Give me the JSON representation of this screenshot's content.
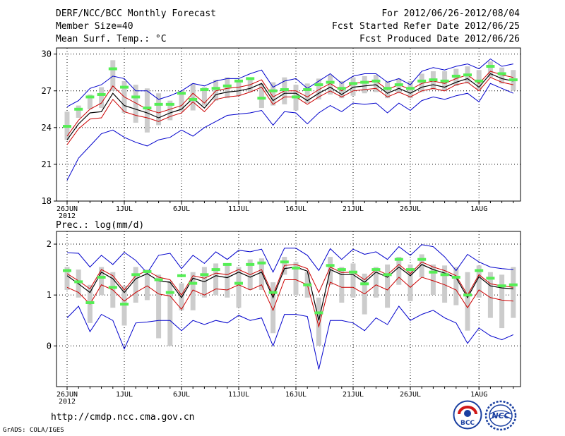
{
  "header": {
    "title": "DERF/NCC/BCC Monthly Forecast",
    "member_size": "Member Size=40",
    "variable": "Mean Surf. Temp.: °C",
    "forecast_period": "For 2012/06/26-2012/08/04",
    "start_refer": "Fcst Started Refer Date 2012/06/25",
    "produced": "Fcst Produced Date 2012/06/26"
  },
  "footer": {
    "url": "http://cmdp.ncc.cma.gov.cn",
    "grads": "GrADS: COLA/IGES",
    "logo_bcc": "BCC",
    "logo_ncc": "NCC"
  },
  "colors": {
    "max_min": "#0000cc",
    "spread": "#cc0000",
    "mean": "#000000",
    "observed_bar": "#55ee55",
    "box": "#cccccc",
    "grid": "#000000"
  },
  "chart_data": [
    {
      "type": "line",
      "title": "Mean Surf. Temp.: °C",
      "x_tick_labels": [
        "26JUN",
        "1JUL",
        "6JUL",
        "11JUL",
        "16JUL",
        "21JUL",
        "26JUL",
        "1AUG"
      ],
      "x_tick_days": [
        0,
        5,
        10,
        15,
        20,
        25,
        30,
        36
      ],
      "x_sub_label": "2012",
      "ylim": [
        18,
        30.5
      ],
      "y_ticks": [
        18,
        21,
        24,
        27,
        30
      ],
      "series": [
        {
          "name": "max",
          "color": "#0000cc",
          "values": [
            25.7,
            26.2,
            27.2,
            27.5,
            28.2,
            28.0,
            27.0,
            27.0,
            26.3,
            26.6,
            27.0,
            27.6,
            27.4,
            27.8,
            28.0,
            28.0,
            28.4,
            28.7,
            27.3,
            27.8,
            28.0,
            27.2,
            27.8,
            28.4,
            27.6,
            28.2,
            28.4,
            28.4,
            27.7,
            28.0,
            27.5,
            28.6,
            28.9,
            28.7,
            29.0,
            29.2,
            28.8,
            29.6,
            29.0,
            29.2
          ]
        },
        {
          "name": "upper",
          "color": "#cc0000",
          "values": [
            23.3,
            24.6,
            25.5,
            26.0,
            27.4,
            26.5,
            26.0,
            25.5,
            25.2,
            25.5,
            25.8,
            26.8,
            26.0,
            27.0,
            27.2,
            27.3,
            27.5,
            27.9,
            26.5,
            27.0,
            27.0,
            26.5,
            27.1,
            27.6,
            27.0,
            27.6,
            27.7,
            27.8,
            27.1,
            27.5,
            27.1,
            27.6,
            27.8,
            27.6,
            28.0,
            28.3,
            27.6,
            28.6,
            28.3,
            28.1
          ]
        },
        {
          "name": "mean",
          "color": "#000000",
          "values": [
            23.0,
            24.3,
            25.2,
            25.3,
            26.8,
            25.8,
            25.5,
            25.2,
            24.8,
            25.2,
            25.5,
            26.4,
            25.6,
            26.7,
            26.9,
            27.0,
            27.2,
            27.6,
            26.2,
            26.8,
            26.8,
            26.2,
            26.8,
            27.3,
            26.7,
            27.3,
            27.4,
            27.5,
            26.8,
            27.2,
            26.8,
            27.3,
            27.5,
            27.3,
            27.7,
            28.0,
            27.3,
            28.4,
            28.0,
            27.8
          ]
        },
        {
          "name": "lower",
          "color": "#cc0000",
          "values": [
            22.6,
            23.9,
            24.7,
            24.8,
            26.3,
            25.3,
            25.0,
            24.8,
            24.5,
            24.9,
            25.2,
            26.1,
            25.3,
            26.3,
            26.5,
            26.6,
            26.9,
            27.3,
            25.9,
            26.5,
            26.5,
            25.9,
            26.5,
            27.0,
            26.5,
            27.0,
            27.1,
            27.2,
            26.5,
            26.9,
            26.5,
            27.0,
            27.2,
            27.0,
            27.5,
            27.7,
            27.0,
            28.1,
            27.7,
            27.5
          ]
        },
        {
          "name": "min",
          "color": "#0000cc",
          "values": [
            19.7,
            21.5,
            22.5,
            23.5,
            23.8,
            23.2,
            22.8,
            22.5,
            23.0,
            23.2,
            23.8,
            23.3,
            24.0,
            24.5,
            25.0,
            25.1,
            25.2,
            25.4,
            24.2,
            25.3,
            25.2,
            24.3,
            25.2,
            25.8,
            25.3,
            26.0,
            25.9,
            26.0,
            25.2,
            26.0,
            25.4,
            26.2,
            26.5,
            26.3,
            26.6,
            26.8,
            26.1,
            27.6,
            27.2,
            26.8
          ]
        },
        {
          "name": "observed",
          "color": "#55ee55",
          "values": [
            24.1,
            25.5,
            26.5,
            26.7,
            28.8,
            27.3,
            26.5,
            25.6,
            25.9,
            25.9,
            26.8,
            26.3,
            27.1,
            27.2,
            27.4,
            27.8,
            28.0,
            26.4,
            27.0,
            27.1,
            26.5,
            27.1,
            27.5,
            27.7,
            27.2,
            27.6,
            27.7,
            27.8,
            27.2,
            27.5,
            27.2,
            27.8,
            27.9,
            27.8,
            28.2,
            28.3,
            27.8,
            29.0,
            28.4,
            27.9
          ]
        },
        {
          "name": "box_high",
          "color": "#cccccc",
          "values": [
            25.3,
            25.8,
            26.7,
            27.3,
            29.5,
            27.8,
            27.5,
            27.2,
            26.8,
            26.2,
            27.0,
            27.6,
            27.3,
            27.9,
            28.1,
            27.9,
            28.0,
            27.6,
            27.7,
            28.1,
            27.5,
            27.6,
            28.0,
            28.3,
            27.8,
            28.1,
            28.2,
            28.3,
            27.8,
            28.0,
            27.8,
            28.4,
            28.6,
            28.6,
            28.8,
            29.0,
            28.7,
            29.4,
            28.9,
            28.7
          ]
        },
        {
          "name": "box_low",
          "color": "#cccccc",
          "values": [
            23.0,
            24.8,
            25.5,
            25.6,
            27.0,
            25.2,
            24.4,
            23.6,
            24.2,
            24.6,
            25.3,
            25.4,
            25.8,
            26.2,
            26.4,
            26.6,
            26.9,
            25.6,
            25.8,
            25.9,
            25.4,
            26.0,
            26.3,
            26.7,
            26.4,
            26.6,
            26.8,
            26.9,
            26.4,
            26.8,
            26.4,
            26.9,
            27.1,
            27.0,
            27.4,
            27.6,
            27.1,
            28.1,
            27.6,
            27.0
          ]
        }
      ]
    },
    {
      "type": "line",
      "title": "Prec.: log(mm/d)",
      "x_tick_labels": [
        "26JUN",
        "1JUL",
        "6JUL",
        "11JUL",
        "16JUL",
        "21JUL",
        "26JUL",
        "1AUG"
      ],
      "x_tick_days": [
        0,
        5,
        10,
        15,
        20,
        25,
        30,
        36
      ],
      "x_sub_label": "2012",
      "ylim": [
        -0.8,
        2.25
      ],
      "y_ticks": [
        0,
        1,
        2
      ],
      "series": [
        {
          "name": "max",
          "color": "#0000cc",
          "values": [
            1.83,
            1.82,
            1.55,
            1.78,
            1.6,
            1.84,
            1.68,
            1.43,
            1.78,
            1.82,
            1.52,
            1.78,
            1.62,
            1.85,
            1.7,
            1.88,
            1.85,
            1.9,
            1.45,
            1.92,
            1.92,
            1.78,
            1.48,
            1.91,
            1.7,
            1.9,
            1.8,
            1.85,
            1.7,
            1.95,
            1.78,
            1.99,
            1.95,
            1.75,
            1.48,
            1.8,
            1.65,
            1.55,
            1.52,
            1.5
          ]
        },
        {
          "name": "upper",
          "color": "#cc0000",
          "values": [
            1.42,
            1.28,
            1.12,
            1.5,
            1.38,
            1.1,
            1.38,
            1.48,
            1.35,
            1.3,
            1.0,
            1.38,
            1.33,
            1.43,
            1.4,
            1.5,
            1.4,
            1.5,
            1.0,
            1.58,
            1.6,
            1.52,
            1.05,
            1.55,
            1.44,
            1.45,
            1.3,
            1.5,
            1.4,
            1.6,
            1.42,
            1.65,
            1.55,
            1.48,
            1.38,
            1.0,
            1.4,
            1.22,
            1.18,
            1.15
          ]
        },
        {
          "name": "mean",
          "color": "#000000",
          "values": [
            1.38,
            1.22,
            1.05,
            1.45,
            1.32,
            1.05,
            1.32,
            1.42,
            1.28,
            1.25,
            0.95,
            1.33,
            1.26,
            1.38,
            1.34,
            1.45,
            1.35,
            1.45,
            0.95,
            1.52,
            1.55,
            1.47,
            0.5,
            1.5,
            1.4,
            1.4,
            1.25,
            1.45,
            1.35,
            1.55,
            1.38,
            1.6,
            1.5,
            1.43,
            1.34,
            0.95,
            1.36,
            1.18,
            1.14,
            1.12
          ]
        },
        {
          "name": "lower",
          "color": "#cc0000",
          "values": [
            1.15,
            1.05,
            0.82,
            1.2,
            1.1,
            0.88,
            1.05,
            1.18,
            1.02,
            0.98,
            0.72,
            1.1,
            1.0,
            1.12,
            1.1,
            1.2,
            1.1,
            1.2,
            0.7,
            1.3,
            1.3,
            1.2,
            0.38,
            1.25,
            1.15,
            1.15,
            1.02,
            1.2,
            1.1,
            1.35,
            1.15,
            1.35,
            1.28,
            1.2,
            1.1,
            0.75,
            1.1,
            0.95,
            0.9,
            0.88
          ]
        },
        {
          "name": "min",
          "color": "#0000cc",
          "values": [
            0.55,
            0.78,
            0.28,
            0.62,
            0.5,
            -0.06,
            0.45,
            0.47,
            0.5,
            0.5,
            0.3,
            0.5,
            0.42,
            0.5,
            0.45,
            0.6,
            0.5,
            0.55,
            0.0,
            0.62,
            0.62,
            0.58,
            -0.46,
            0.5,
            0.5,
            0.45,
            0.3,
            0.55,
            0.42,
            0.78,
            0.5,
            0.62,
            0.7,
            0.55,
            0.45,
            0.05,
            0.35,
            0.2,
            0.12,
            0.22
          ]
        },
        {
          "name": "observed",
          "color": "#55ee55",
          "values": [
            1.48,
            1.26,
            0.85,
            1.35,
            1.15,
            0.82,
            1.4,
            1.46,
            1.3,
            1.05,
            1.38,
            1.23,
            1.4,
            1.5,
            1.6,
            1.23,
            1.6,
            1.63,
            1.05,
            1.65,
            1.53,
            1.2,
            0.65,
            1.58,
            1.5,
            1.45,
            1.22,
            1.5,
            1.4,
            1.7,
            1.5,
            1.7,
            1.45,
            1.4,
            1.35,
            1.0,
            1.48,
            1.33,
            1.18,
            1.2
          ]
        },
        {
          "name": "box_high",
          "color": "#cccccc",
          "values": [
            1.55,
            1.5,
            1.2,
            1.55,
            1.45,
            1.18,
            1.55,
            1.5,
            1.4,
            1.28,
            1.23,
            1.45,
            1.55,
            1.62,
            1.62,
            1.55,
            1.7,
            1.72,
            1.25,
            1.75,
            1.65,
            1.45,
            0.95,
            1.75,
            1.55,
            1.62,
            1.42,
            1.55,
            1.6,
            1.75,
            1.6,
            1.8,
            1.6,
            1.58,
            1.55,
            1.45,
            1.58,
            1.45,
            1.4,
            1.55
          ]
        },
        {
          "name": "box_low",
          "color": "#cccccc",
          "values": [
            1.1,
            0.95,
            0.45,
            1.0,
            0.75,
            0.4,
            0.85,
            0.9,
            0.15,
            0.0,
            0.7,
            0.7,
            0.95,
            1.0,
            0.95,
            0.75,
            1.1,
            1.1,
            0.25,
            1.4,
            1.0,
            0.95,
            0.0,
            1.2,
            0.85,
            0.95,
            0.62,
            0.95,
            0.75,
            1.2,
            0.88,
            1.35,
            1.0,
            0.85,
            0.8,
            0.3,
            0.95,
            0.55,
            0.35,
            0.55
          ]
        }
      ]
    }
  ]
}
